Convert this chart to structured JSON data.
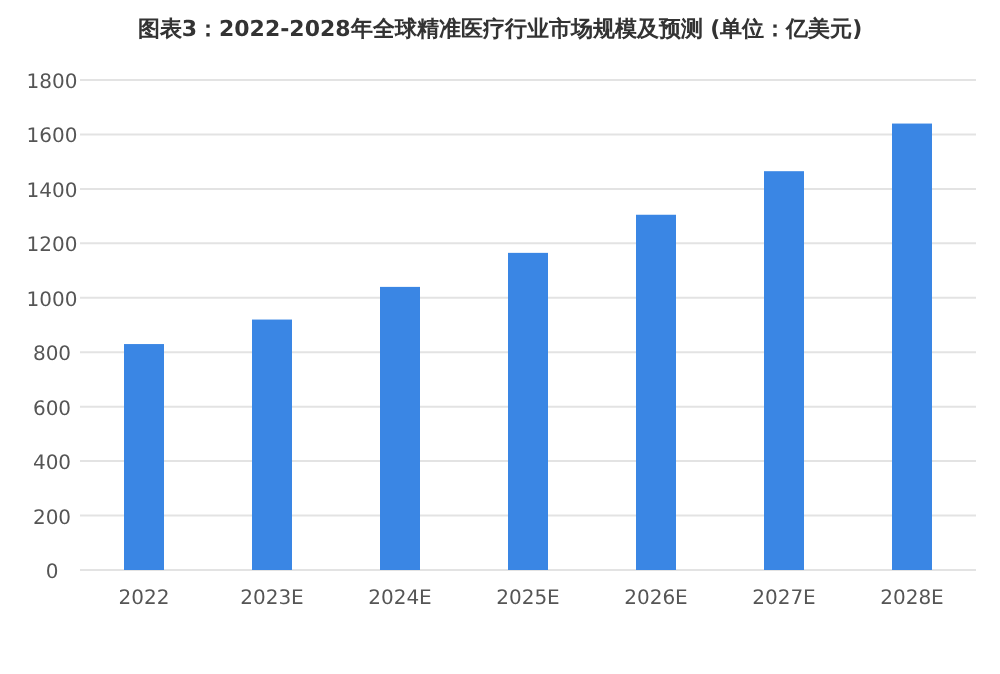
{
  "chart_data": {
    "type": "bar",
    "title": "图表3：2022-2028年全球精准医疗行业市场规模及预测 (单位：亿美元)",
    "categories": [
      "2022",
      "2023E",
      "2024E",
      "2025E",
      "2026E",
      "2027E",
      "2028E"
    ],
    "values": [
      830,
      920,
      1040,
      1165,
      1305,
      1465,
      1640
    ],
    "color": "#3a86e4",
    "ylim": [
      0,
      1800
    ],
    "yticks": [
      0,
      200,
      400,
      600,
      800,
      1000,
      1200,
      1400,
      1600,
      1800
    ],
    "grid": "y",
    "legend": false
  }
}
